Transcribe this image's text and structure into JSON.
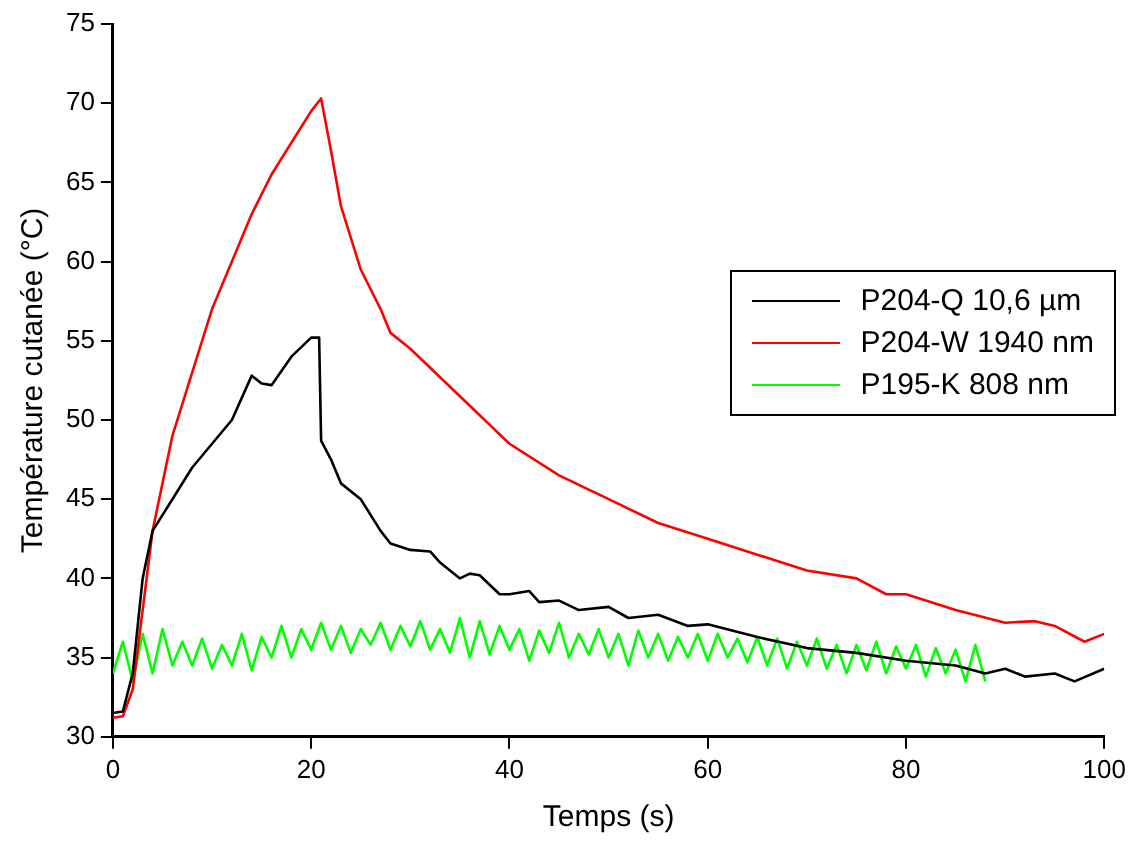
{
  "chart_data": {
    "type": "line",
    "xlabel": "Temps (s)",
    "ylabel": "Température cutanée (°C)",
    "xlim": [
      0,
      100
    ],
    "xticks": [
      0,
      20,
      40,
      60,
      80,
      100
    ],
    "ylim": [
      30,
      75
    ],
    "yticks": [
      30,
      35,
      40,
      45,
      50,
      55,
      60,
      65,
      70,
      75
    ],
    "grid": false,
    "legend": "right",
    "marker": "none",
    "line_style": "solid",
    "series": [
      {
        "name": "P204-Q 10,6 µm",
        "color": "#000000",
        "x": [
          0,
          1,
          2,
          3,
          4,
          6,
          8,
          10,
          12,
          14,
          15,
          16,
          18,
          20,
          20.8,
          21,
          22,
          23,
          25,
          27,
          28,
          30,
          32,
          33,
          35,
          36,
          37,
          39,
          40,
          42,
          43,
          45,
          47,
          50,
          52,
          55,
          58,
          60,
          65,
          70,
          75,
          80,
          85,
          88,
          90,
          92,
          95,
          97,
          100
        ],
        "values": [
          31.5,
          31.6,
          34,
          40,
          43,
          45,
          47,
          48.5,
          50,
          52.8,
          52.3,
          52.2,
          54,
          55.2,
          55.2,
          48.7,
          47.5,
          46,
          45,
          43,
          42.2,
          41.8,
          41.7,
          41,
          40,
          40.3,
          40.2,
          39,
          39,
          39.2,
          38.5,
          38.6,
          38,
          38.2,
          37.5,
          37.7,
          37,
          37.1,
          36.3,
          35.6,
          35.3,
          34.8,
          34.5,
          34,
          34.3,
          33.8,
          34,
          33.5,
          34.3
        ]
      },
      {
        "name": "P204-W 1940 nm",
        "color": "#ff0000",
        "x": [
          0,
          1,
          2,
          3,
          4,
          6,
          8,
          10,
          12,
          14,
          16,
          18,
          20,
          21,
          22,
          23,
          25,
          27,
          28,
          30,
          35,
          40,
          45,
          50,
          55,
          60,
          65,
          70,
          75,
          78,
          80,
          85,
          90,
          93,
          95,
          98,
          100
        ],
        "values": [
          31.2,
          31.3,
          33,
          38,
          43,
          49,
          53,
          57,
          60,
          63,
          65.5,
          67.5,
          69.5,
          70.3,
          67,
          63.5,
          59.5,
          57,
          55.5,
          54.5,
          51.5,
          48.5,
          46.5,
          45,
          43.5,
          42.5,
          41.5,
          40.5,
          40,
          39,
          39,
          38,
          37.2,
          37.3,
          37,
          36,
          36.5
        ]
      },
      {
        "name": "P195-K 808 nm",
        "color": "#00ff00",
        "x": [
          0,
          1,
          2,
          3,
          4,
          5,
          6,
          7,
          8,
          9,
          10,
          11,
          12,
          13,
          14,
          15,
          16,
          17,
          18,
          19,
          20,
          21,
          22,
          23,
          24,
          25,
          26,
          27,
          28,
          29,
          30,
          31,
          32,
          33,
          34,
          35,
          36,
          37,
          38,
          39,
          40,
          41,
          42,
          43,
          44,
          45,
          46,
          47,
          48,
          49,
          50,
          51,
          52,
          53,
          54,
          55,
          56,
          57,
          58,
          59,
          60,
          61,
          62,
          63,
          64,
          65,
          66,
          67,
          68,
          69,
          70,
          71,
          72,
          73,
          74,
          75,
          76,
          77,
          78,
          79,
          80,
          81,
          82,
          83,
          84,
          85,
          86,
          87,
          88
        ],
        "values": [
          34,
          36,
          33.5,
          36.5,
          34,
          36.8,
          34.5,
          36,
          34.5,
          36.2,
          34.3,
          35.8,
          34.5,
          36.5,
          34.2,
          36.3,
          35,
          37,
          35,
          36.8,
          35.5,
          37.2,
          35.5,
          37,
          35.3,
          36.8,
          35.8,
          37.2,
          35.5,
          37,
          35.7,
          37.3,
          35.5,
          36.8,
          35.3,
          37.5,
          35,
          37.3,
          35.2,
          37,
          35.5,
          36.8,
          34.8,
          36.7,
          35.3,
          37.2,
          35,
          36.5,
          35.2,
          36.8,
          35,
          36.5,
          34.5,
          36.7,
          35,
          36.5,
          34.8,
          36.3,
          35,
          36.5,
          34.8,
          36.5,
          35,
          36.2,
          34.7,
          36.3,
          34.5,
          36.2,
          34.3,
          36,
          34.5,
          36.2,
          34.3,
          35.8,
          34,
          35.8,
          34.2,
          36,
          34,
          35.7,
          34.3,
          35.8,
          33.8,
          35.6,
          34,
          35.5,
          33.5,
          35.8,
          33.5
        ]
      }
    ]
  }
}
